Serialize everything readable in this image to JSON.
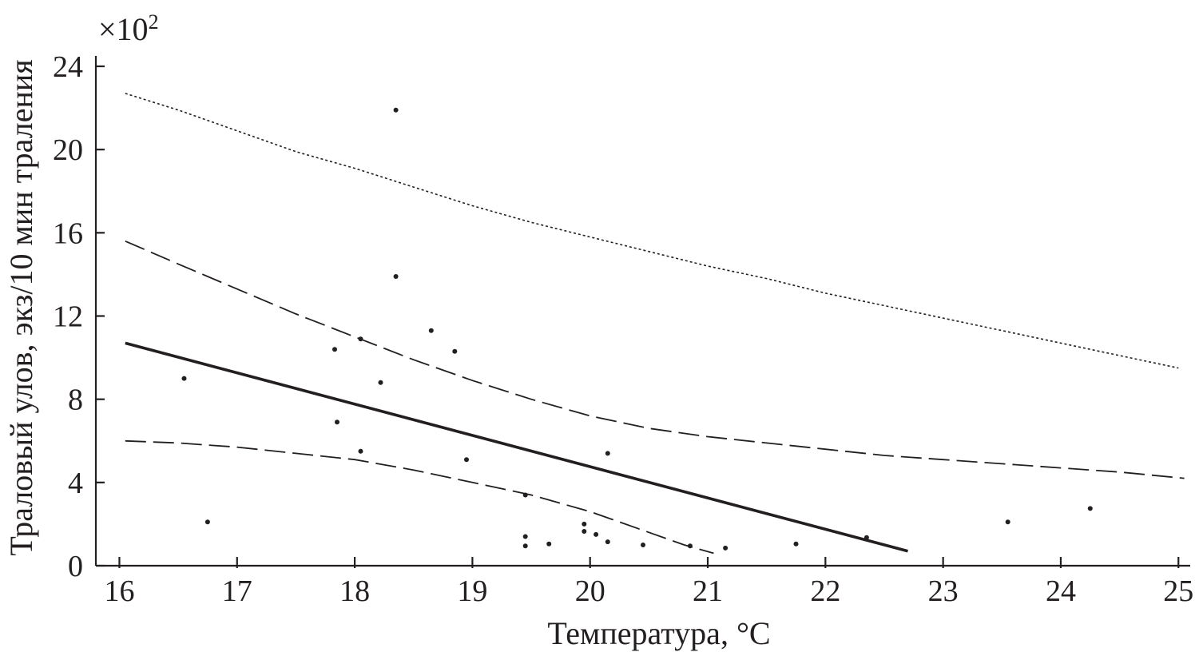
{
  "chart_data": {
    "type": "scatter",
    "xlabel": "Температура, °C",
    "ylabel": "Траловый улов, экз/10 мин траления",
    "y_multiplier": "×10",
    "y_multiplier_exponent": "2",
    "xlim": [
      15.8,
      25.1
    ],
    "ylim": [
      0,
      24.5
    ],
    "x_ticks": [
      16,
      17,
      18,
      19,
      20,
      21,
      22,
      23,
      24,
      25
    ],
    "y_ticks": [
      0,
      4,
      8,
      12,
      16,
      20,
      24
    ],
    "grid": false,
    "legend": "none",
    "points": [
      {
        "x": 16.55,
        "y": 9.0
      },
      {
        "x": 16.75,
        "y": 2.1
      },
      {
        "x": 17.83,
        "y": 10.4
      },
      {
        "x": 17.85,
        "y": 6.9
      },
      {
        "x": 18.05,
        "y": 10.9
      },
      {
        "x": 18.05,
        "y": 5.5
      },
      {
        "x": 18.22,
        "y": 8.8
      },
      {
        "x": 18.35,
        "y": 21.9
      },
      {
        "x": 18.35,
        "y": 13.9
      },
      {
        "x": 18.65,
        "y": 11.3
      },
      {
        "x": 18.85,
        "y": 10.3
      },
      {
        "x": 18.95,
        "y": 5.1
      },
      {
        "x": 19.45,
        "y": 3.4
      },
      {
        "x": 19.45,
        "y": 1.4
      },
      {
        "x": 19.45,
        "y": 0.95
      },
      {
        "x": 19.65,
        "y": 1.05
      },
      {
        "x": 19.95,
        "y": 2.0
      },
      {
        "x": 19.95,
        "y": 1.65
      },
      {
        "x": 20.05,
        "y": 1.5
      },
      {
        "x": 20.15,
        "y": 5.4
      },
      {
        "x": 20.15,
        "y": 1.15
      },
      {
        "x": 20.45,
        "y": 1.0
      },
      {
        "x": 20.85,
        "y": 0.95
      },
      {
        "x": 21.15,
        "y": 0.85
      },
      {
        "x": 21.75,
        "y": 1.05
      },
      {
        "x": 22.35,
        "y": 1.35
      },
      {
        "x": 23.55,
        "y": 2.1
      },
      {
        "x": 24.25,
        "y": 2.75
      }
    ],
    "series": [
      {
        "style": "solid",
        "x": [
          16.05,
          22.7
        ],
        "y": [
          10.7,
          0.7
        ]
      },
      {
        "style": "dashed-upper",
        "x": [
          16.05,
          16.5,
          17.0,
          17.5,
          18.0,
          18.5,
          19.0,
          19.5,
          20.0,
          20.5,
          21.0,
          21.5,
          22.0,
          22.5,
          23.0,
          23.5,
          24.0,
          24.5,
          25.05
        ],
        "y": [
          15.6,
          14.5,
          13.3,
          12.1,
          11.0,
          9.9,
          8.9,
          8.0,
          7.2,
          6.6,
          6.2,
          5.9,
          5.6,
          5.3,
          5.1,
          4.9,
          4.7,
          4.5,
          4.2
        ]
      },
      {
        "style": "dashed-lower",
        "x": [
          16.05,
          16.5,
          17.0,
          17.5,
          18.0,
          18.5,
          19.0,
          19.5,
          20.0,
          20.5,
          20.8,
          21.05
        ],
        "y": [
          6.0,
          5.9,
          5.7,
          5.4,
          5.1,
          4.6,
          4.0,
          3.4,
          2.6,
          1.6,
          1.0,
          0.6
        ]
      },
      {
        "style": "dotted",
        "x": [
          16.05,
          16.5,
          17.0,
          17.5,
          18.0,
          18.5,
          19.0,
          19.5,
          20.0,
          20.5,
          21.0,
          21.5,
          22.0,
          22.5,
          23.0,
          23.5,
          24.0,
          24.5,
          25.0
        ],
        "y": [
          22.7,
          21.9,
          20.9,
          19.9,
          19.1,
          18.2,
          17.3,
          16.5,
          15.8,
          15.1,
          14.4,
          13.8,
          13.1,
          12.5,
          11.9,
          11.3,
          10.7,
          10.1,
          9.5
        ]
      }
    ]
  }
}
